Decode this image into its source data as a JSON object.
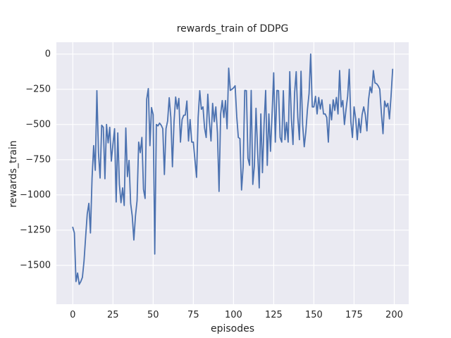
{
  "figure": {
    "title": "rewards_train of DDPG",
    "xlabel": "episodes",
    "ylabel": "rewards_train"
  },
  "colors": {
    "line": "#4c72b0",
    "plot_background": "#eaeaf2",
    "grid": "#ffffff",
    "text": "#262626",
    "figure_background": "#ffffff"
  },
  "chart_data": {
    "type": "line",
    "title": "rewards_train of DDPG",
    "xlabel": "episodes",
    "ylabel": "rewards_train",
    "legend": null,
    "grid": true,
    "xlim": [
      -10.2,
      209
    ],
    "ylim": [
      -1776,
      84
    ],
    "x_ticks": [
      0,
      25,
      50,
      75,
      100,
      125,
      150,
      175,
      200
    ],
    "x_tick_labels": [
      "0",
      "25",
      "50",
      "75",
      "100",
      "125",
      "150",
      "175",
      "200"
    ],
    "y_ticks": [
      0,
      -250,
      -500,
      -750,
      -1000,
      -1250,
      -1500
    ],
    "y_tick_labels": [
      "0",
      "−250",
      "−500",
      "−750",
      "−1000",
      "−1250",
      "−1500"
    ],
    "series": [
      {
        "name": "rewards_train",
        "x_start": 0,
        "x_step": 1,
        "values": [
          -1230,
          -1270,
          -1615,
          -1555,
          -1635,
          -1615,
          -1585,
          -1470,
          -1300,
          -1135,
          -1060,
          -1270,
          -880,
          -650,
          -825,
          -260,
          -700,
          -880,
          -505,
          -520,
          -885,
          -500,
          -630,
          -520,
          -760,
          -640,
          -530,
          -1050,
          -560,
          -925,
          -1055,
          -950,
          -1075,
          -525,
          -870,
          -755,
          -1060,
          -1150,
          -1320,
          -1150,
          -1040,
          -625,
          -700,
          -592,
          -960,
          -1025,
          -320,
          -245,
          -650,
          -380,
          -430,
          -1420,
          -500,
          -510,
          -490,
          -505,
          -530,
          -855,
          -530,
          -475,
          -310,
          -450,
          -800,
          -480,
          -305,
          -390,
          -315,
          -625,
          -465,
          -435,
          -433,
          -333,
          -617,
          -465,
          -625,
          -625,
          -750,
          -875,
          -450,
          -260,
          -392,
          -375,
          -525,
          -592,
          -285,
          -480,
          -617,
          -350,
          -480,
          -375,
          -560,
          -975,
          -425,
          -330,
          -450,
          -330,
          -530,
          -100,
          -258,
          -250,
          -240,
          -225,
          -442,
          -592,
          -600,
          -965,
          -800,
          -258,
          -260,
          -740,
          -790,
          -258,
          -925,
          -790,
          -385,
          -690,
          -950,
          -425,
          -842,
          -500,
          -258,
          -790,
          -425,
          -690,
          -425,
          -133,
          -625,
          -258,
          -260,
          -592,
          -625,
          -260,
          -608,
          -485,
          -625,
          -125,
          -458,
          -642,
          -275,
          -125,
          -450,
          -608,
          -122,
          -500,
          -658,
          -550,
          -392,
          -280,
          0,
          -375,
          -375,
          -300,
          -425,
          -308,
          -390,
          -325,
          -425,
          -425,
          -450,
          -625,
          -358,
          -467,
          -325,
          -400,
          -308,
          -425,
          -117,
          -375,
          -330,
          -500,
          -392,
          -300,
          -108,
          -480,
          -592,
          -375,
          -458,
          -608,
          -458,
          -558,
          -430,
          -375,
          -430,
          -545,
          -325,
          -233,
          -275,
          -117,
          -205,
          -210,
          -225,
          -250,
          -420,
          -565,
          -333,
          -375,
          -350,
          -460,
          -300,
          -108
        ]
      }
    ]
  }
}
